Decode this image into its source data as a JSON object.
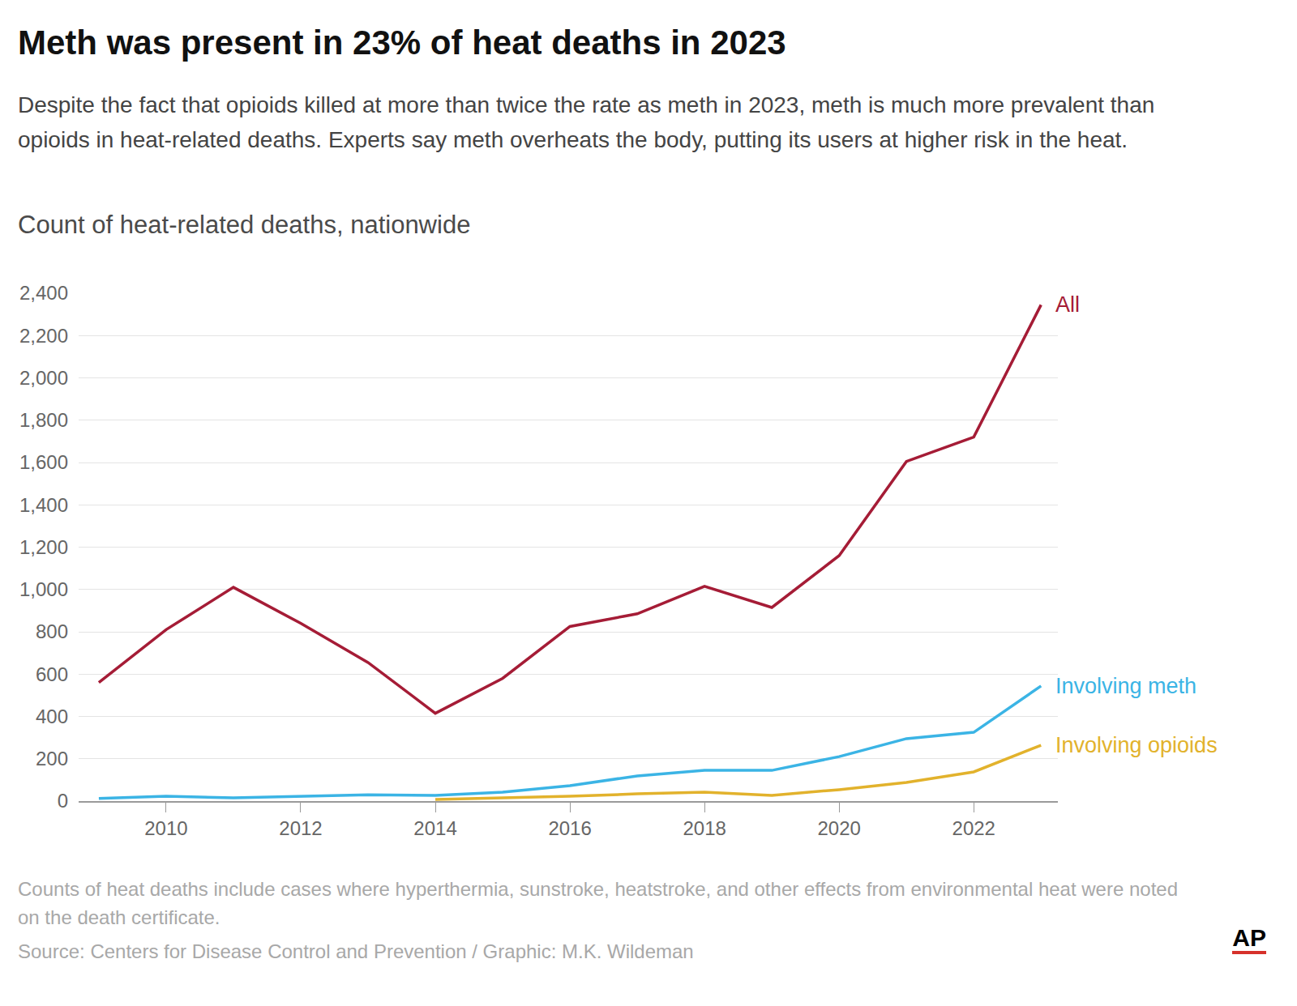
{
  "chart_data": {
    "type": "line",
    "title": "Meth was present in 23% of heat deaths in 2023",
    "subtitle": "Despite the fact that opioids killed at more than twice the rate as meth in 2023, meth is much more prevalent than opioids in heat-related deaths. Experts say meth overheats the body, putting its users at higher risk in the heat.",
    "ylabel": "Count of heat-related deaths, nationwide",
    "note": "Counts of heat deaths include cases where hyperthermia, sunstroke, heatstroke, and other effects from environmental heat were noted on the death certificate.",
    "source": "Source: Centers for Disease Control and Prevention / Graphic: M.K. Wildeman",
    "credit": "AP",
    "x": [
      2009,
      2010,
      2011,
      2012,
      2013,
      2014,
      2015,
      2016,
      2017,
      2018,
      2019,
      2020,
      2021,
      2022,
      2023
    ],
    "series": [
      {
        "name": "All",
        "color": "#a51c36",
        "values": [
          560,
          810,
          1010,
          840,
          655,
          415,
          580,
          825,
          885,
          1015,
          915,
          1160,
          1605,
          1720,
          2345
        ]
      },
      {
        "name": "Involving meth",
        "color": "#3bb4e5",
        "values": [
          12,
          23,
          15,
          23,
          30,
          27,
          42,
          73,
          119,
          145,
          145,
          210,
          295,
          325,
          544
        ]
      },
      {
        "name": "Involving opioids",
        "color": "#e2b22c",
        "values": [
          null,
          null,
          null,
          null,
          null,
          8,
          15,
          23,
          34,
          42,
          27,
          54,
          88,
          138,
          264
        ]
      }
    ],
    "xlim": [
      2008.7,
      2023.25
    ],
    "xticks": [
      2010,
      2012,
      2014,
      2016,
      2018,
      2020,
      2022
    ],
    "ylim": [
      0,
      2400
    ],
    "yticks": [
      0,
      200,
      400,
      600,
      800,
      {
        "value": 1000,
        "label": "1,000"
      },
      {
        "value": 1200,
        "label": "1,200"
      },
      {
        "value": 1400,
        "label": "1,400"
      },
      {
        "value": 1600,
        "label": "1,600"
      },
      {
        "value": 1800,
        "label": "1,800"
      },
      {
        "value": 2000,
        "label": "2,000"
      },
      {
        "value": 2200,
        "label": "2,200"
      },
      {
        "value": 2400,
        "label": "2,400"
      }
    ],
    "grid": true
  }
}
